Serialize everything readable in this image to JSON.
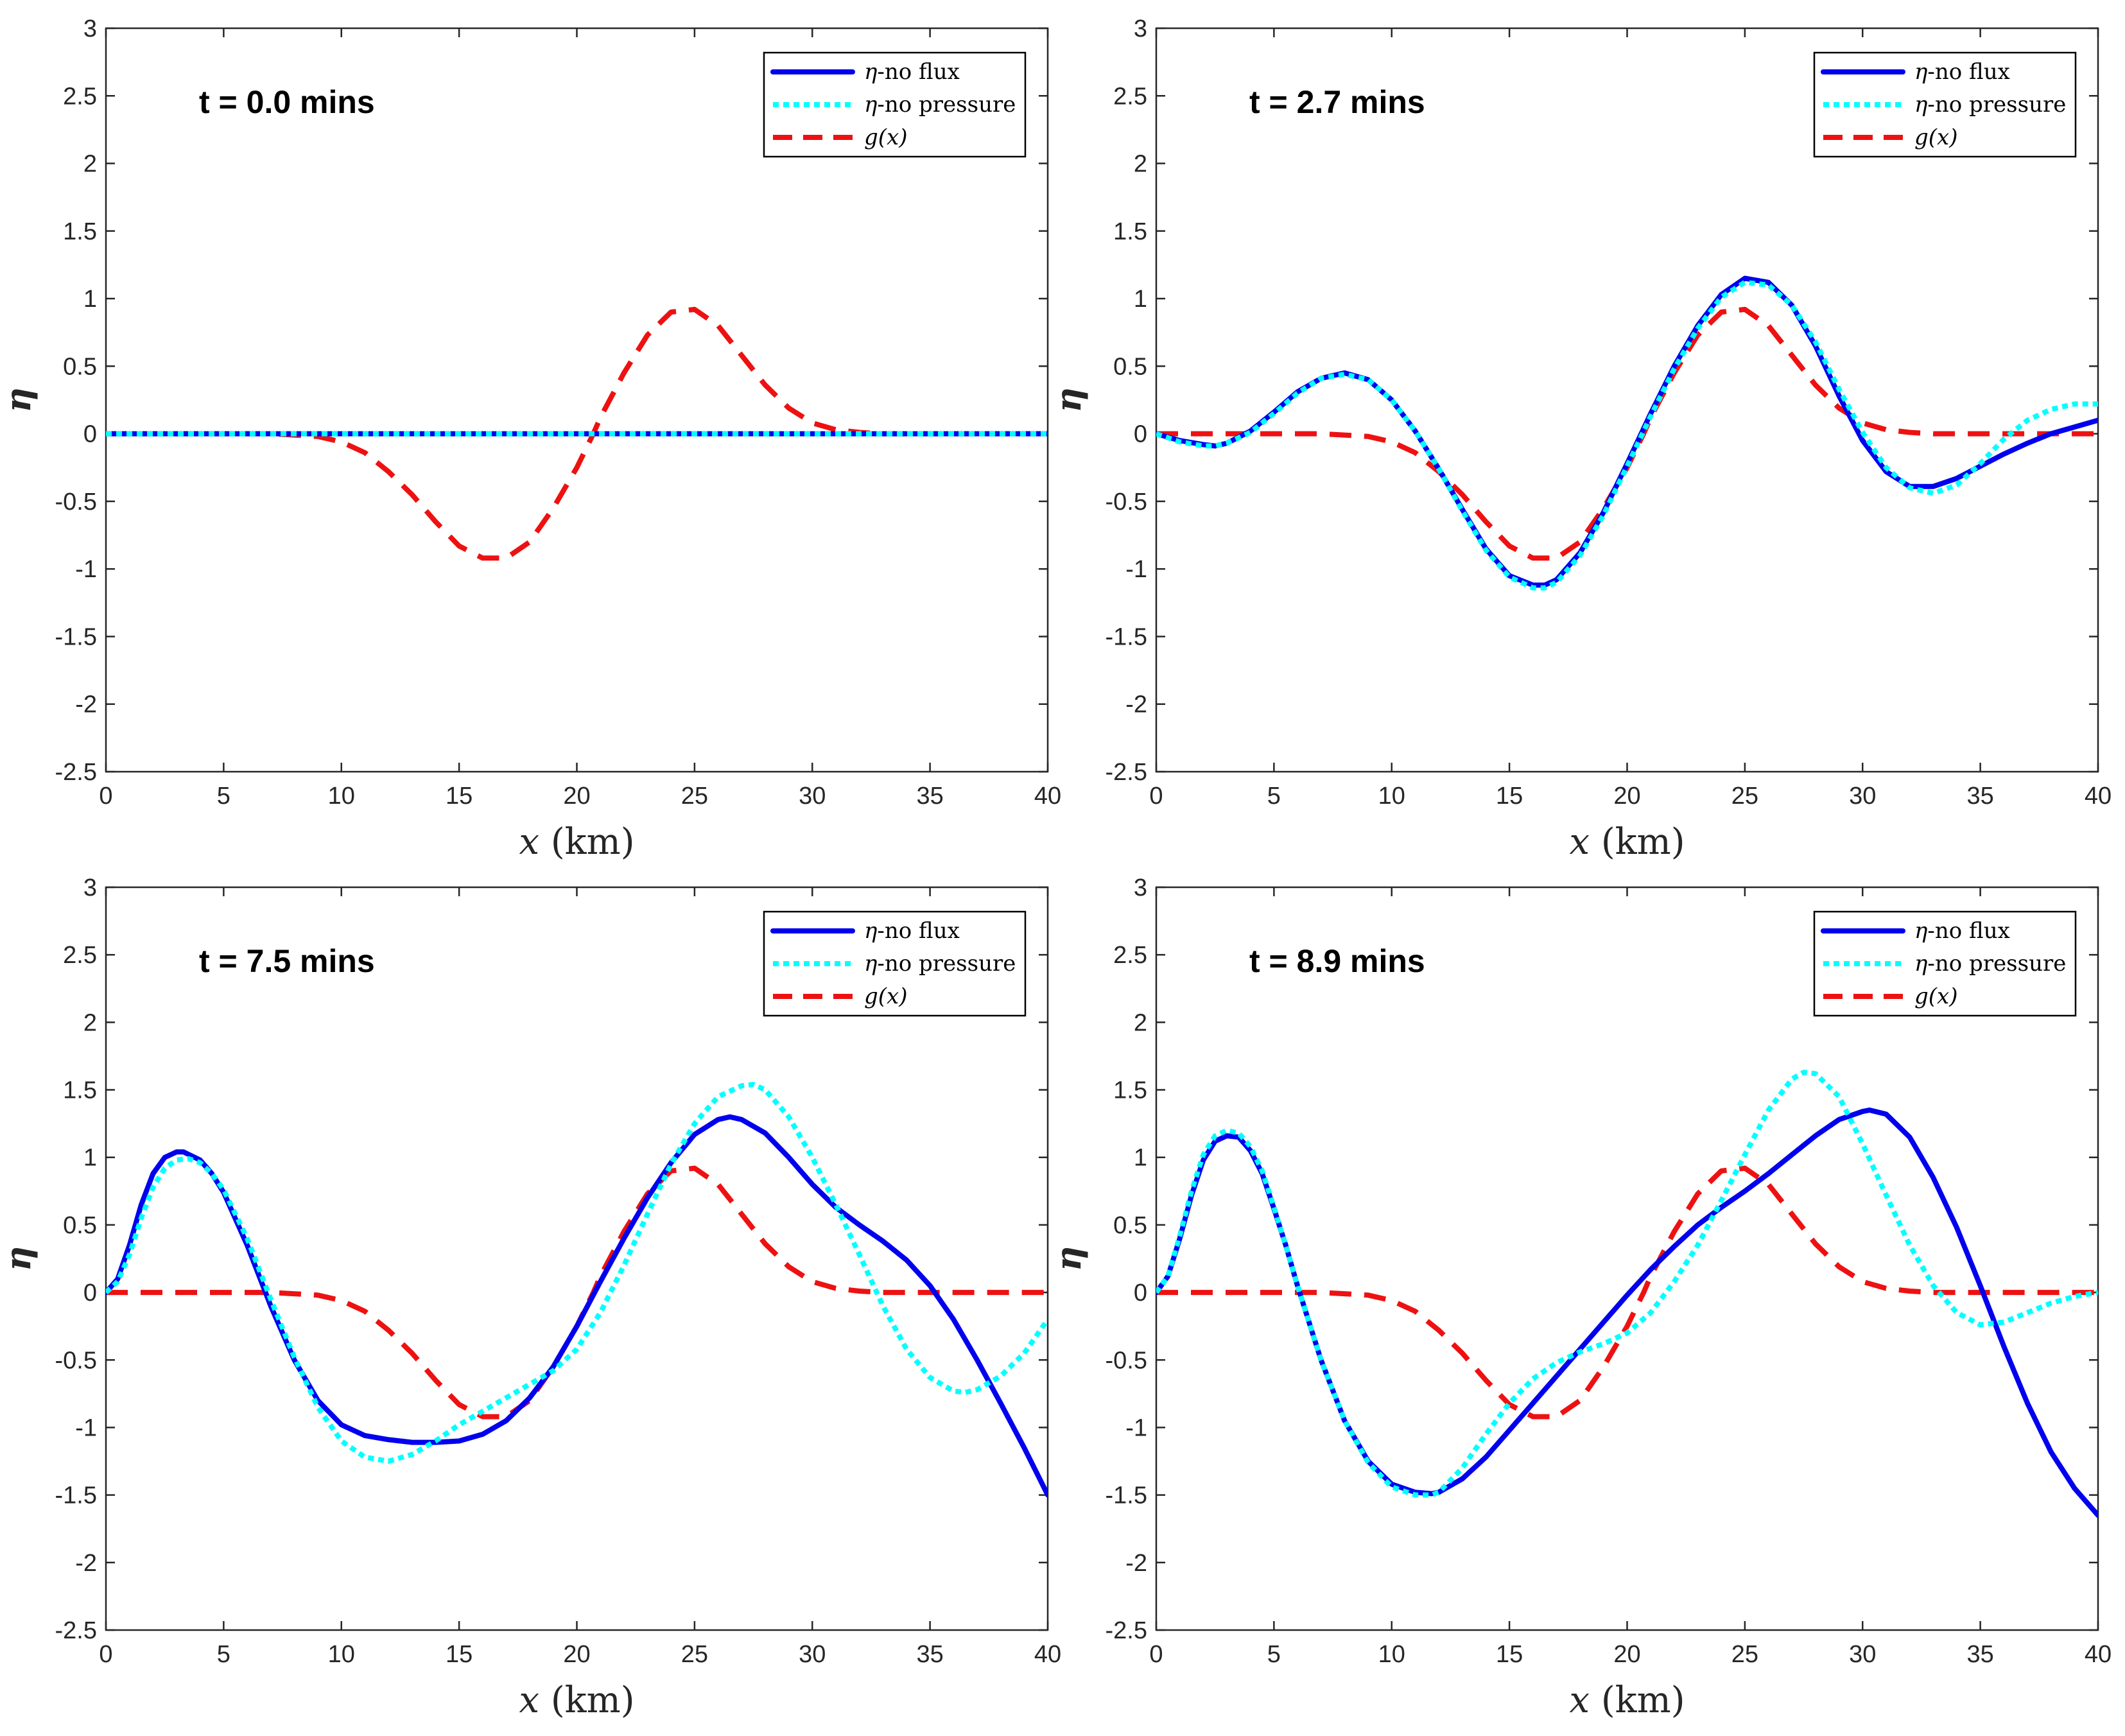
{
  "colors": {
    "no_flux": "#0000ee",
    "no_pressure": "#00ffff",
    "g": "#ee1111",
    "axis": "#262626"
  },
  "chart_data": [
    {
      "type": "line",
      "annotation": "t = 0.0 mins",
      "xlabel": "x (km)",
      "ylabel": "η",
      "xlim": [
        0,
        40
      ],
      "ylim": [
        -2.5,
        3
      ],
      "xticks": [
        "0",
        "5",
        "10",
        "15",
        "20",
        "25",
        "30",
        "35",
        "40"
      ],
      "yticks": [
        "-2.5",
        "-2",
        "-1.5",
        "-1",
        "-0.5",
        "0",
        "0.5",
        "1",
        "1.5",
        "2",
        "2.5",
        "3"
      ],
      "legend": [
        "η-no flux",
        "η-no pressure",
        "g(x)"
      ],
      "legend_position": "top-right",
      "series": [
        {
          "name": "η-no flux",
          "style": "solid",
          "x": [
            0,
            40
          ],
          "y": [
            0,
            0
          ]
        },
        {
          "name": "η-no pressure",
          "style": "dotted",
          "x": [
            0,
            40
          ],
          "y": [
            0,
            0
          ]
        },
        {
          "name": "g(x)",
          "style": "dashed",
          "x": [
            0,
            7,
            9,
            10,
            11,
            12,
            13,
            14,
            15,
            16,
            17,
            18,
            19,
            20,
            20.7,
            21,
            22,
            23,
            24,
            25,
            26,
            27,
            28,
            29,
            30,
            31,
            32,
            33,
            34,
            40
          ],
          "y": [
            0,
            0,
            -0.02,
            -0.06,
            -0.14,
            -0.28,
            -0.45,
            -0.65,
            -0.83,
            -0.92,
            -0.92,
            -0.8,
            -0.55,
            -0.25,
            0,
            0.12,
            0.45,
            0.73,
            0.9,
            0.92,
            0.8,
            0.58,
            0.36,
            0.19,
            0.08,
            0.03,
            0.01,
            0,
            0,
            0
          ]
        }
      ]
    },
    {
      "type": "line",
      "annotation": "t = 2.7 mins",
      "xlabel": "x (km)",
      "ylabel": "η",
      "xlim": [
        0,
        40
      ],
      "ylim": [
        -2.5,
        3
      ],
      "xticks": [
        "0",
        "5",
        "10",
        "15",
        "20",
        "25",
        "30",
        "35",
        "40"
      ],
      "yticks": [
        "-2.5",
        "-2",
        "-1.5",
        "-1",
        "-0.5",
        "0",
        "0.5",
        "1",
        "1.5",
        "2",
        "2.5",
        "3"
      ],
      "legend": [
        "η-no flux",
        "η-no pressure",
        "g(x)"
      ],
      "legend_position": "top-right",
      "series": [
        {
          "name": "η-no flux",
          "style": "solid",
          "x": [
            0,
            1,
            2,
            2.5,
            3,
            4,
            5,
            6,
            7,
            8,
            9,
            10,
            11,
            12,
            13,
            14,
            15,
            16,
            16.5,
            17,
            18,
            19,
            20,
            21,
            22,
            23,
            24,
            25,
            26,
            27,
            28,
            29,
            30,
            31,
            32,
            33,
            34,
            35,
            36,
            37,
            38,
            39,
            40
          ],
          "y": [
            0,
            -0.05,
            -0.08,
            -0.09,
            -0.07,
            0.02,
            0.16,
            0.31,
            0.41,
            0.45,
            0.4,
            0.25,
            0.02,
            -0.26,
            -0.56,
            -0.85,
            -1.05,
            -1.12,
            -1.12,
            -1.08,
            -0.88,
            -0.58,
            -0.22,
            0.15,
            0.5,
            0.8,
            1.03,
            1.15,
            1.12,
            0.95,
            0.65,
            0.28,
            -0.05,
            -0.28,
            -0.39,
            -0.39,
            -0.33,
            -0.24,
            -0.15,
            -0.07,
            0,
            0.05,
            0.1
          ]
        },
        {
          "name": "η-no pressure",
          "style": "dotted",
          "x": [
            0,
            1,
            2,
            2.5,
            3,
            4,
            5,
            6,
            7,
            8,
            9,
            10,
            11,
            12,
            13,
            14,
            15,
            16,
            16.5,
            17,
            18,
            19,
            20,
            21,
            22,
            23,
            24,
            25,
            26,
            27,
            28,
            29,
            30,
            31,
            32,
            33,
            34,
            35,
            36,
            37,
            38,
            39,
            40
          ],
          "y": [
            0,
            -0.06,
            -0.09,
            -0.09,
            -0.07,
            0.01,
            0.15,
            0.3,
            0.41,
            0.44,
            0.4,
            0.25,
            0.02,
            -0.26,
            -0.57,
            -0.86,
            -1.06,
            -1.14,
            -1.14,
            -1.1,
            -0.9,
            -0.6,
            -0.24,
            0.13,
            0.48,
            0.78,
            1.01,
            1.12,
            1.1,
            0.95,
            0.68,
            0.33,
            0.01,
            -0.25,
            -0.4,
            -0.44,
            -0.38,
            -0.22,
            -0.04,
            0.1,
            0.18,
            0.22,
            0.22
          ]
        },
        {
          "name": "g(x)",
          "style": "dashed",
          "x": [
            0,
            7,
            9,
            10,
            11,
            12,
            13,
            14,
            15,
            16,
            17,
            18,
            19,
            20,
            20.7,
            21,
            22,
            23,
            24,
            25,
            26,
            27,
            28,
            29,
            30,
            31,
            32,
            33,
            34,
            40
          ],
          "y": [
            0,
            0,
            -0.02,
            -0.06,
            -0.14,
            -0.28,
            -0.45,
            -0.65,
            -0.83,
            -0.92,
            -0.92,
            -0.8,
            -0.55,
            -0.25,
            0,
            0.12,
            0.45,
            0.73,
            0.9,
            0.92,
            0.8,
            0.58,
            0.36,
            0.19,
            0.08,
            0.03,
            0.01,
            0,
            0,
            0
          ]
        }
      ]
    },
    {
      "type": "line",
      "annotation": "t = 7.5 mins",
      "xlabel": "x (km)",
      "ylabel": "η",
      "xlim": [
        0,
        40
      ],
      "ylim": [
        -2.5,
        3
      ],
      "xticks": [
        "0",
        "5",
        "10",
        "15",
        "20",
        "25",
        "30",
        "35",
        "40"
      ],
      "yticks": [
        "-2.5",
        "-2",
        "-1.5",
        "-1",
        "-0.5",
        "0",
        "0.5",
        "1",
        "1.5",
        "2",
        "2.5",
        "3"
      ],
      "legend": [
        "η-no flux",
        "η-no pressure",
        "g(x)"
      ],
      "legend_position": "top-right",
      "series": [
        {
          "name": "η-no flux",
          "style": "solid",
          "x": [
            0,
            0.5,
            1,
            1.5,
            2,
            2.5,
            3,
            3.3,
            4,
            4.5,
            5,
            6,
            7,
            8,
            9,
            10,
            11,
            12,
            13,
            14,
            15,
            16,
            17,
            18,
            19,
            20,
            21,
            22,
            23,
            24,
            25,
            26,
            26.5,
            27,
            28,
            29,
            30,
            31,
            32,
            33,
            34,
            35,
            36,
            37,
            38,
            39,
            40
          ],
          "y": [
            0,
            0.1,
            0.35,
            0.65,
            0.88,
            1.0,
            1.04,
            1.04,
            0.98,
            0.88,
            0.74,
            0.35,
            -0.1,
            -0.5,
            -0.8,
            -0.98,
            -1.06,
            -1.09,
            -1.11,
            -1.11,
            -1.1,
            -1.05,
            -0.95,
            -0.78,
            -0.55,
            -0.25,
            0.08,
            0.4,
            0.7,
            0.96,
            1.17,
            1.28,
            1.3,
            1.28,
            1.18,
            1.0,
            0.8,
            0.63,
            0.5,
            0.38,
            0.24,
            0.05,
            -0.2,
            -0.5,
            -0.82,
            -1.15,
            -1.5
          ]
        },
        {
          "name": "η-no pressure",
          "style": "dotted",
          "x": [
            0,
            0.5,
            1,
            1.5,
            2,
            2.5,
            3,
            3.5,
            4,
            4.5,
            5,
            6,
            7,
            8,
            9,
            10,
            11,
            12,
            13,
            14,
            15,
            16,
            17,
            18,
            19,
            20,
            21,
            22,
            23,
            24,
            25,
            26,
            27,
            27.5,
            28,
            29,
            30,
            31,
            32,
            33,
            34,
            35,
            36,
            36.5,
            37,
            38,
            39,
            40
          ],
          "y": [
            0,
            0.08,
            0.28,
            0.55,
            0.78,
            0.92,
            0.98,
            0.99,
            0.96,
            0.88,
            0.76,
            0.4,
            -0.05,
            -0.48,
            -0.85,
            -1.1,
            -1.22,
            -1.25,
            -1.2,
            -1.1,
            -0.98,
            -0.88,
            -0.78,
            -0.68,
            -0.58,
            -0.42,
            -0.15,
            0.2,
            0.58,
            0.95,
            1.25,
            1.45,
            1.53,
            1.54,
            1.5,
            1.3,
            1.0,
            0.65,
            0.28,
            -0.1,
            -0.42,
            -0.63,
            -0.73,
            -0.74,
            -0.72,
            -0.62,
            -0.45,
            -0.2
          ]
        },
        {
          "name": "g(x)",
          "style": "dashed",
          "x": [
            0,
            7,
            9,
            10,
            11,
            12,
            13,
            14,
            15,
            16,
            17,
            18,
            19,
            20,
            20.7,
            21,
            22,
            23,
            24,
            25,
            26,
            27,
            28,
            29,
            30,
            31,
            32,
            33,
            34,
            40
          ],
          "y": [
            0,
            0,
            -0.02,
            -0.06,
            -0.14,
            -0.28,
            -0.45,
            -0.65,
            -0.83,
            -0.92,
            -0.92,
            -0.8,
            -0.55,
            -0.25,
            0,
            0.12,
            0.45,
            0.73,
            0.9,
            0.92,
            0.8,
            0.58,
            0.36,
            0.19,
            0.08,
            0.03,
            0.01,
            0,
            0,
            0
          ]
        }
      ]
    },
    {
      "type": "line",
      "annotation": "t = 8.9 mins",
      "xlabel": "x (km)",
      "ylabel": "η",
      "xlim": [
        0,
        40
      ],
      "ylim": [
        -2.5,
        3
      ],
      "xticks": [
        "0",
        "5",
        "10",
        "15",
        "20",
        "25",
        "30",
        "35",
        "40"
      ],
      "yticks": [
        "-2.5",
        "-2",
        "-1.5",
        "-1",
        "-0.5",
        "0",
        "0.5",
        "1",
        "1.5",
        "2",
        "2.5",
        "3"
      ],
      "legend": [
        "η-no flux",
        "η-no pressure",
        "g(x)"
      ],
      "legend_position": "top-right",
      "series": [
        {
          "name": "η-no flux",
          "style": "solid",
          "x": [
            0,
            0.5,
            1,
            1.5,
            2,
            2.5,
            3,
            3.5,
            4,
            4.5,
            5,
            5.5,
            6,
            7,
            8,
            9,
            10,
            11,
            11.7,
            12,
            13,
            14,
            15,
            16,
            17,
            18,
            19,
            20,
            21,
            22,
            23,
            24,
            25,
            26,
            27,
            28,
            29,
            30,
            30.3,
            31,
            32,
            33,
            34,
            35,
            36,
            37,
            38,
            39,
            40
          ],
          "y": [
            0,
            0.12,
            0.4,
            0.72,
            0.98,
            1.12,
            1.16,
            1.15,
            1.05,
            0.88,
            0.62,
            0.35,
            0.05,
            -0.5,
            -0.95,
            -1.25,
            -1.42,
            -1.48,
            -1.49,
            -1.48,
            -1.38,
            -1.22,
            -1.02,
            -0.82,
            -0.62,
            -0.42,
            -0.22,
            -0.02,
            0.17,
            0.34,
            0.5,
            0.63,
            0.75,
            0.88,
            1.02,
            1.16,
            1.28,
            1.34,
            1.35,
            1.32,
            1.15,
            0.85,
            0.48,
            0.05,
            -0.4,
            -0.82,
            -1.18,
            -1.45,
            -1.65
          ]
        },
        {
          "name": "η-no pressure",
          "style": "dotted",
          "x": [
            0,
            0.5,
            1,
            1.5,
            2,
            2.5,
            3,
            3.5,
            4,
            4.5,
            5,
            5.5,
            6,
            7,
            8,
            9,
            10,
            11,
            11.7,
            12,
            13,
            14,
            15,
            16,
            17,
            18,
            19,
            20,
            21,
            22,
            23,
            24,
            25,
            26,
            27,
            27.5,
            28,
            29,
            30,
            31,
            32,
            33,
            34,
            35,
            36,
            37,
            38,
            39,
            40
          ],
          "y": [
            0,
            0.12,
            0.42,
            0.75,
            1.02,
            1.16,
            1.2,
            1.18,
            1.08,
            0.9,
            0.63,
            0.35,
            0.05,
            -0.5,
            -0.95,
            -1.26,
            -1.44,
            -1.5,
            -1.5,
            -1.48,
            -1.3,
            -1.05,
            -0.82,
            -0.64,
            -0.52,
            -0.44,
            -0.38,
            -0.3,
            -0.15,
            0.08,
            0.35,
            0.68,
            1.02,
            1.35,
            1.58,
            1.63,
            1.62,
            1.45,
            1.1,
            0.72,
            0.35,
            0.05,
            -0.15,
            -0.24,
            -0.22,
            -0.15,
            -0.08,
            -0.03,
            0
          ]
        },
        {
          "name": "g(x)",
          "style": "dashed",
          "x": [
            0,
            7,
            9,
            10,
            11,
            12,
            13,
            14,
            15,
            16,
            17,
            18,
            19,
            20,
            20.7,
            21,
            22,
            23,
            24,
            25,
            26,
            27,
            28,
            29,
            30,
            31,
            32,
            33,
            34,
            40
          ],
          "y": [
            0,
            0,
            -0.02,
            -0.06,
            -0.14,
            -0.28,
            -0.45,
            -0.65,
            -0.83,
            -0.92,
            -0.92,
            -0.8,
            -0.55,
            -0.25,
            0,
            0.12,
            0.45,
            0.73,
            0.9,
            0.92,
            0.8,
            0.58,
            0.36,
            0.19,
            0.08,
            0.03,
            0.01,
            0,
            0,
            0
          ]
        }
      ]
    }
  ]
}
